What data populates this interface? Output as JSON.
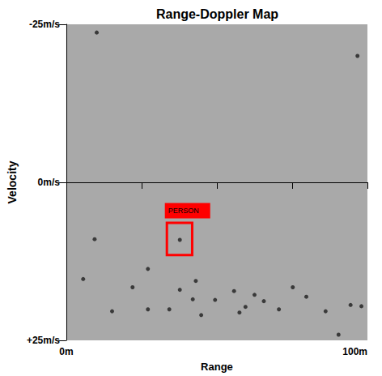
{
  "chart_data": {
    "type": "scatter",
    "title": "Range-Doppler Map",
    "x_label": "Range",
    "y_label": "Velocity",
    "xlim": [
      0,
      100
    ],
    "xticks": [
      {
        "value": 0,
        "label": "0m"
      },
      {
        "value": 25,
        "label": null
      },
      {
        "value": 50,
        "label": null
      },
      {
        "value": 75,
        "label": null
      },
      {
        "value": 100,
        "label": "100m"
      }
    ],
    "ylim": [
      25,
      -25
    ],
    "yticks": [
      {
        "value": -25,
        "label": "-25m/s"
      },
      {
        "value": 0,
        "label": "0m/s"
      },
      {
        "value": 25,
        "label": "+25m/s"
      }
    ],
    "grid": false,
    "marker": "circle",
    "color": "#1e1e1e",
    "x": [
      37.7,
      27.1,
      34.2,
      37.7,
      42.0,
      49.4,
      43.0,
      27.1,
      15.2,
      59.5,
      65.6,
      70.6,
      79.7,
      86.1,
      94.4,
      98.0,
      55.7,
      62.5,
      44.8,
      5.6,
      9.4,
      96.7,
      10.1,
      57.5,
      90.4,
      22.0,
      75.2
    ],
    "values": [
      9.1,
      20.1,
      20.1,
      17.0,
      18.5,
      18.6,
      15.6,
      13.7,
      20.4,
      19.7,
      18.8,
      20.1,
      18.1,
      20.4,
      19.4,
      19.6,
      17.2,
      17.8,
      21.0,
      15.3,
      9.0,
      -20.0,
      -23.7,
      20.6,
      24.1,
      16.6,
      16.6
    ],
    "annotations": [
      {
        "text": "PERSON",
        "x": [
          33.4,
          41.8
        ],
        "y": [
          6.4,
          11.5
        ],
        "color": "#ff0000"
      }
    ]
  }
}
